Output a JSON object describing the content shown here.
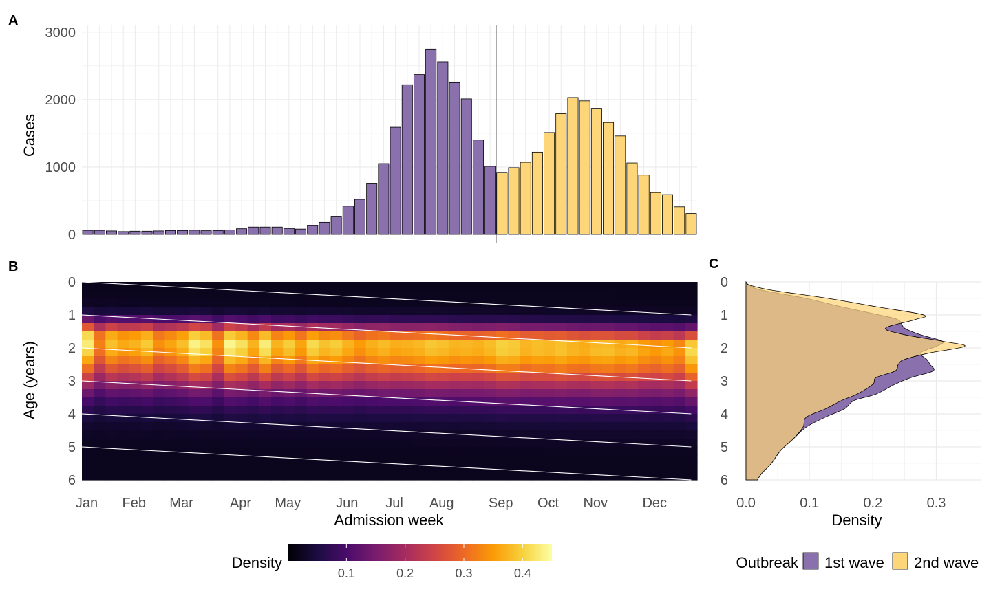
{
  "colors": {
    "first_wave": "#8a70ad",
    "second_wave": "#fed67a",
    "bar_outline": "#000000",
    "grid": "#ebebeb",
    "iso_lines": "#ffffff",
    "density_scale": [
      "#000004",
      "#1b0c41",
      "#4a0c6b",
      "#781c6d",
      "#a52c60",
      "#cf4446",
      "#ed6925",
      "#fb9b06",
      "#f7d13d",
      "#fcffa4"
    ]
  },
  "panels": {
    "a": {
      "tag": "A"
    },
    "b": {
      "tag": "B"
    },
    "c": {
      "tag": "C"
    }
  },
  "chart_data": [
    {
      "id": "A",
      "type": "bar",
      "ylabel": "Cases",
      "xlabel": "",
      "ylim": [
        0,
        3100
      ],
      "yticks": [
        0,
        1000,
        2000,
        3000
      ],
      "grid": true,
      "x_unit": "admission week (1-52)",
      "wave_split_week": 36,
      "series": [
        {
          "name": "1st wave",
          "weeks": [
            1,
            35
          ],
          "values": [
            60,
            60,
            52,
            42,
            48,
            48,
            52,
            58,
            58,
            62,
            55,
            58,
            65,
            85,
            110,
            110,
            110,
            90,
            80,
            130,
            180,
            270,
            420,
            520,
            760,
            1050,
            1590,
            2220,
            2370,
            2750,
            2560,
            2260,
            2010,
            1400,
            1010
          ]
        },
        {
          "name": "2nd wave",
          "weeks": [
            36,
            52
          ],
          "values": [
            920,
            990,
            1070,
            1220,
            1510,
            1790,
            2030,
            1980,
            1870,
            1660,
            1460,
            1060,
            880,
            620,
            590,
            410,
            310
          ]
        }
      ]
    },
    {
      "id": "B",
      "type": "heatmap",
      "xlabel": "Admission week",
      "ylabel": "Age (years)",
      "x_tick_labels": [
        "Jan",
        "Feb",
        "Mar",
        "Apr",
        "May",
        "Jun",
        "Jul",
        "Aug",
        "Sep",
        "Oct",
        "Nov",
        "Dec"
      ],
      "x_tick_weeks": [
        1,
        5,
        9,
        14,
        18,
        23,
        27,
        31,
        36,
        40,
        44,
        49
      ],
      "y_ticks": [
        0,
        1,
        2,
        3,
        4,
        5,
        6
      ],
      "ylim": [
        0,
        6
      ],
      "y_reversed": true,
      "age_bins": 24,
      "week_range": [
        1,
        52
      ],
      "fill_legend": {
        "title": "Density",
        "ticks": [
          0.1,
          0.2,
          0.3,
          0.4
        ],
        "range": [
          0.0,
          0.45
        ],
        "palette": "inferno"
      },
      "reference_lines": [
        {
          "age_start": 0,
          "age_end": 1
        },
        {
          "age_start": 1,
          "age_end": 2
        },
        {
          "age_start": 2,
          "age_end": 3
        },
        {
          "age_start": 3,
          "age_end": 4
        },
        {
          "age_start": 4,
          "age_end": 5
        },
        {
          "age_start": 5,
          "age_end": 6
        }
      ]
    },
    {
      "id": "C",
      "type": "area",
      "xlabel": "Density",
      "ylabel": "",
      "xlim": [
        0,
        0.37
      ],
      "xticks": [
        0.0,
        0.1,
        0.2,
        0.3
      ],
      "x_tick_labels": [
        "0.0",
        "0.1",
        "0.2",
        "0.3"
      ],
      "ylim": [
        0,
        6
      ],
      "yticks": [
        0,
        1,
        2,
        3,
        4,
        5,
        6
      ],
      "y_reversed": true,
      "grid": true,
      "age": [
        0,
        0.1,
        0.25,
        0.5,
        0.75,
        1.0,
        1.15,
        1.4,
        1.6,
        1.8,
        1.95,
        2.15,
        2.35,
        2.5,
        2.7,
        2.9,
        3.1,
        3.4,
        3.6,
        3.85,
        4.1,
        4.4,
        4.75,
        5.1,
        5.5,
        5.8,
        6.0
      ],
      "series": [
        {
          "name": "1st wave",
          "density": [
            0.0,
            0.005,
            0.025,
            0.095,
            0.15,
            0.21,
            0.24,
            0.25,
            0.275,
            0.31,
            0.3,
            0.275,
            0.285,
            0.29,
            0.295,
            0.26,
            0.235,
            0.205,
            0.17,
            0.155,
            0.125,
            0.095,
            0.075,
            0.055,
            0.04,
            0.025,
            0.018
          ]
        },
        {
          "name": "2nd wave",
          "density": [
            0.0,
            0.006,
            0.04,
            0.13,
            0.205,
            0.28,
            0.265,
            0.22,
            0.25,
            0.31,
            0.345,
            0.29,
            0.25,
            0.24,
            0.235,
            0.205,
            0.2,
            0.175,
            0.15,
            0.125,
            0.095,
            0.09,
            0.075,
            0.055,
            0.04,
            0.025,
            0.018
          ]
        }
      ],
      "legend": {
        "title": "Outbreak",
        "entries": [
          "1st wave",
          "2nd wave"
        ],
        "position": "bottom"
      }
    }
  ]
}
